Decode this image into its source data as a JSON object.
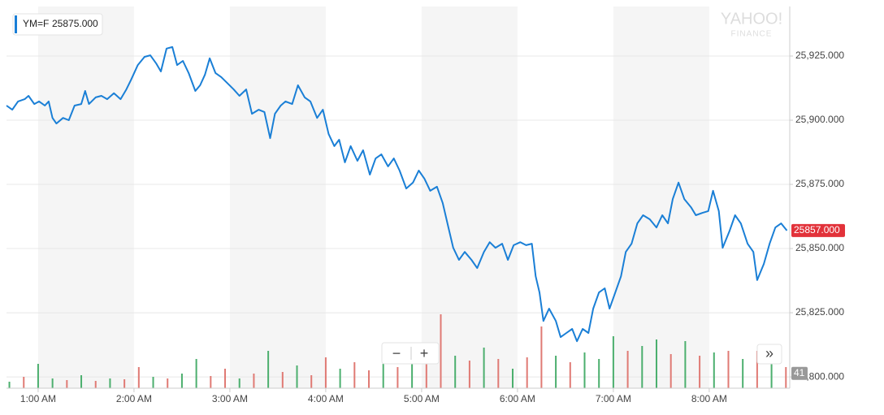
{
  "chart_data": {
    "type": "line",
    "legend_symbol": "YM=F",
    "legend_value": "25875.000",
    "logo": "YAHOO!",
    "logo_sub": "FINANCE",
    "zoom_out": "−",
    "zoom_in": "+",
    "more": "»",
    "xlim": [
      0.67,
      8.84
    ],
    "xticks": [
      {
        "value": 1,
        "label": "1:00 AM"
      },
      {
        "value": 2,
        "label": "2:00 AM"
      },
      {
        "value": 3,
        "label": "3:00 AM"
      },
      {
        "value": 4,
        "label": "4:00 AM"
      },
      {
        "value": 5,
        "label": "5:00 AM"
      },
      {
        "value": 6,
        "label": "6:00 AM"
      },
      {
        "value": 7,
        "label": "7:00 AM"
      },
      {
        "value": 8,
        "label": "8:00 AM"
      }
    ],
    "ylim": [
      25795.6,
      25944.3
    ],
    "yticks": [
      {
        "value": 25800,
        "label": "25,800.000"
      },
      {
        "value": 25825,
        "label": "25,825.000"
      },
      {
        "value": 25850,
        "label": "25,850.000"
      },
      {
        "value": 25875,
        "label": "25,875.000"
      },
      {
        "value": 25900,
        "label": "25,900.000"
      },
      {
        "value": 25925,
        "label": "25,925.000"
      }
    ],
    "grid": true,
    "last_price": {
      "value": 25857,
      "label": "25857.000"
    },
    "last_volume": 41,
    "series": [
      {
        "name": "YM=F",
        "color": "#1a7fd6",
        "x": [
          0.67,
          0.73,
          0.79,
          0.86,
          0.9,
          0.96,
          1.01,
          1.07,
          1.11,
          1.15,
          1.19,
          1.26,
          1.32,
          1.38,
          1.45,
          1.49,
          1.53,
          1.6,
          1.66,
          1.72,
          1.79,
          1.86,
          1.92,
          1.97,
          2.04,
          2.11,
          2.17,
          2.23,
          2.28,
          2.34,
          2.4,
          2.45,
          2.51,
          2.57,
          2.64,
          2.69,
          2.74,
          2.79,
          2.85,
          2.91,
          2.97,
          3.04,
          3.1,
          3.17,
          3.23,
          3.3,
          3.36,
          3.42,
          3.47,
          3.53,
          3.58,
          3.65,
          3.71,
          3.78,
          3.84,
          3.91,
          3.97,
          4.03,
          4.09,
          4.14,
          4.2,
          4.26,
          4.33,
          4.39,
          4.46,
          4.52,
          4.58,
          4.65,
          4.71,
          4.77,
          4.84,
          4.91,
          4.97,
          5.03,
          5.09,
          5.16,
          5.22,
          5.28,
          5.33,
          5.39,
          5.45,
          5.52,
          5.58,
          5.65,
          5.71,
          5.77,
          5.84,
          5.9,
          5.96,
          6.03,
          6.09,
          6.15,
          6.19,
          6.23,
          6.27,
          6.33,
          6.4,
          6.45,
          6.51,
          6.57,
          6.62,
          6.68,
          6.74,
          6.79,
          6.85,
          6.91,
          6.96,
          7.02,
          7.08,
          7.13,
          7.19,
          7.25,
          7.31,
          7.38,
          7.45,
          7.51,
          7.57,
          7.62,
          7.68,
          7.74,
          7.81,
          7.86,
          7.93,
          7.99,
          8.04,
          8.1,
          8.14,
          8.21,
          8.27,
          8.33,
          8.4,
          8.46,
          8.5,
          8.57,
          8.63,
          8.69,
          8.75,
          8.81
        ],
        "values": [
          25905.7,
          25904.1,
          25907.3,
          25908.2,
          25909.5,
          25906.3,
          25907.3,
          25905.7,
          25907.3,
          25900.9,
          25898.7,
          25900.9,
          25900.0,
          25905.7,
          25906.3,
          25911.4,
          25906.3,
          25908.9,
          25909.5,
          25908.2,
          25910.5,
          25908.2,
          25912.0,
          25915.8,
          25921.5,
          25924.7,
          25925.3,
          25922.2,
          25919.0,
          25927.9,
          25928.5,
          25921.5,
          25923.1,
          25918.4,
          25911.4,
          25913.6,
          25917.7,
          25924.1,
          25918.4,
          25916.8,
          25914.6,
          25912.0,
          25909.5,
          25912.0,
          25902.5,
          25904.1,
          25903.2,
          25893.0,
          25902.5,
          25905.7,
          25907.3,
          25906.3,
          25913.6,
          25908.9,
          25907.3,
          25900.9,
          25904.1,
          25894.6,
          25889.9,
          25892.4,
          25883.6,
          25889.9,
          25884.2,
          25888.3,
          25878.8,
          25885.1,
          25886.7,
          25882.0,
          25885.1,
          25880.4,
          25873.4,
          25875.7,
          25880.4,
          25877.2,
          25872.5,
          25874.1,
          25867.7,
          25858.2,
          25850.3,
          25845.6,
          25848.7,
          25845.6,
          25842.4,
          25848.7,
          25852.5,
          25850.3,
          25851.9,
          25845.6,
          25851.3,
          25852.5,
          25851.3,
          25851.9,
          25839.2,
          25832.9,
          25821.8,
          25826.6,
          25821.8,
          25815.5,
          25817.1,
          25818.7,
          25813.9,
          25818.7,
          25817.1,
          25826.6,
          25832.9,
          25834.5,
          25826.6,
          25832.9,
          25839.2,
          25848.7,
          25851.9,
          25859.8,
          25863.0,
          25861.4,
          25858.2,
          25863.0,
          25859.8,
          25869.3,
          25875.7,
          25869.3,
          25866.1,
          25863.0,
          25863.9,
          25864.6,
          25872.5,
          25864.6,
          25850.3,
          25856.7,
          25863.0,
          25859.8,
          25851.9,
          25848.7,
          25837.7,
          25844.0,
          25851.9,
          25858.2,
          25859.8,
          25857.0
        ]
      }
    ],
    "volume": {
      "ylim": [
        0,
        500
      ],
      "x": [
        0.7,
        0.85,
        1.0,
        1.15,
        1.3,
        1.45,
        1.6,
        1.75,
        1.9,
        2.05,
        2.2,
        2.35,
        2.5,
        2.65,
        2.8,
        2.95,
        3.1,
        3.25,
        3.4,
        3.55,
        3.7,
        3.85,
        4.0,
        4.15,
        4.3,
        4.45,
        4.6,
        4.75,
        4.9,
        5.05,
        5.2,
        5.35,
        5.5,
        5.65,
        5.8,
        5.95,
        6.1,
        6.25,
        6.4,
        6.55,
        6.7,
        6.85,
        7.0,
        7.15,
        7.3,
        7.45,
        7.6,
        7.75,
        7.9,
        8.05,
        8.2,
        8.35,
        8.5,
        8.65,
        8.8
      ],
      "values": [
        40,
        70,
        150,
        60,
        50,
        80,
        45,
        60,
        55,
        130,
        70,
        60,
        90,
        180,
        75,
        120,
        60,
        90,
        230,
        100,
        140,
        80,
        190,
        120,
        160,
        110,
        150,
        130,
        170,
        160,
        455,
        200,
        170,
        250,
        180,
        120,
        190,
        380,
        200,
        160,
        220,
        180,
        320,
        230,
        260,
        300,
        210,
        290,
        200,
        220,
        230,
        180,
        230,
        190,
        130
      ],
      "colors": [
        "#4caf6e",
        "#e07a74",
        "#4caf6e",
        "#4caf6e",
        "#e07a74",
        "#4caf6e",
        "#e07a74",
        "#4caf6e",
        "#e07a74",
        "#e07a74",
        "#4caf6e",
        "#e07a74",
        "#4caf6e",
        "#4caf6e",
        "#e07a74",
        "#e07a74",
        "#4caf6e",
        "#e07a74",
        "#4caf6e",
        "#e07a74",
        "#4caf6e",
        "#e07a74",
        "#e07a74",
        "#4caf6e",
        "#e07a74",
        "#e07a74",
        "#4caf6e",
        "#e07a74",
        "#4caf6e",
        "#e07a74",
        "#e07a74",
        "#4caf6e",
        "#e07a74",
        "#4caf6e",
        "#e07a74",
        "#4caf6e",
        "#e07a74",
        "#e07a74",
        "#4caf6e",
        "#e07a74",
        "#4caf6e",
        "#4caf6e",
        "#4caf6e",
        "#e07a74",
        "#4caf6e",
        "#4caf6e",
        "#e07a74",
        "#4caf6e",
        "#e07a74",
        "#4caf6e",
        "#e07a74",
        "#4caf6e",
        "#e07a74",
        "#4caf6e",
        "#e07a74"
      ]
    }
  }
}
